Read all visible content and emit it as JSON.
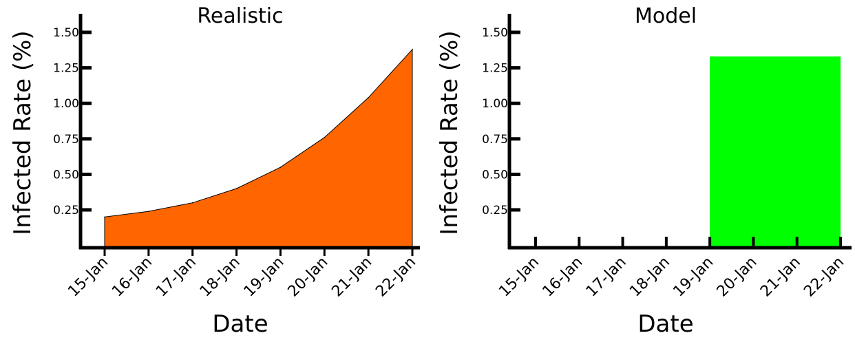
{
  "chart_data": [
    {
      "type": "area",
      "title": "Realistic",
      "xlabel": "Date",
      "ylabel": "Infected Rate (%)",
      "categories": [
        "15-Jan",
        "16-Jan",
        "17-Jan",
        "18-Jan",
        "19-Jan",
        "20-Jan",
        "21-Jan",
        "22-Jan"
      ],
      "values": [
        0.2,
        0.24,
        0.3,
        0.4,
        0.55,
        0.76,
        1.04,
        1.38
      ],
      "yticks": [
        "0.25",
        "0.50",
        "0.75",
        "1.00",
        "1.25",
        "1.50"
      ],
      "ylim": [
        0,
        1.6
      ],
      "fill_color": "#ff6600",
      "grid": false
    },
    {
      "type": "bar",
      "title": "Model",
      "xlabel": "Date",
      "ylabel": "Infected Rate (%)",
      "categories": [
        "15-Jan",
        "16-Jan",
        "17-Jan",
        "18-Jan",
        "19-Jan",
        "20-Jan",
        "21-Jan",
        "22-Jan"
      ],
      "bar_span": [
        "19-Jan",
        "22-Jan"
      ],
      "bar_value": 1.33,
      "yticks": [
        "0.25",
        "0.50",
        "0.75",
        "1.00",
        "1.25",
        "1.50"
      ],
      "ylim": [
        0,
        1.6
      ],
      "fill_color": "#00ff00",
      "grid": false
    }
  ]
}
